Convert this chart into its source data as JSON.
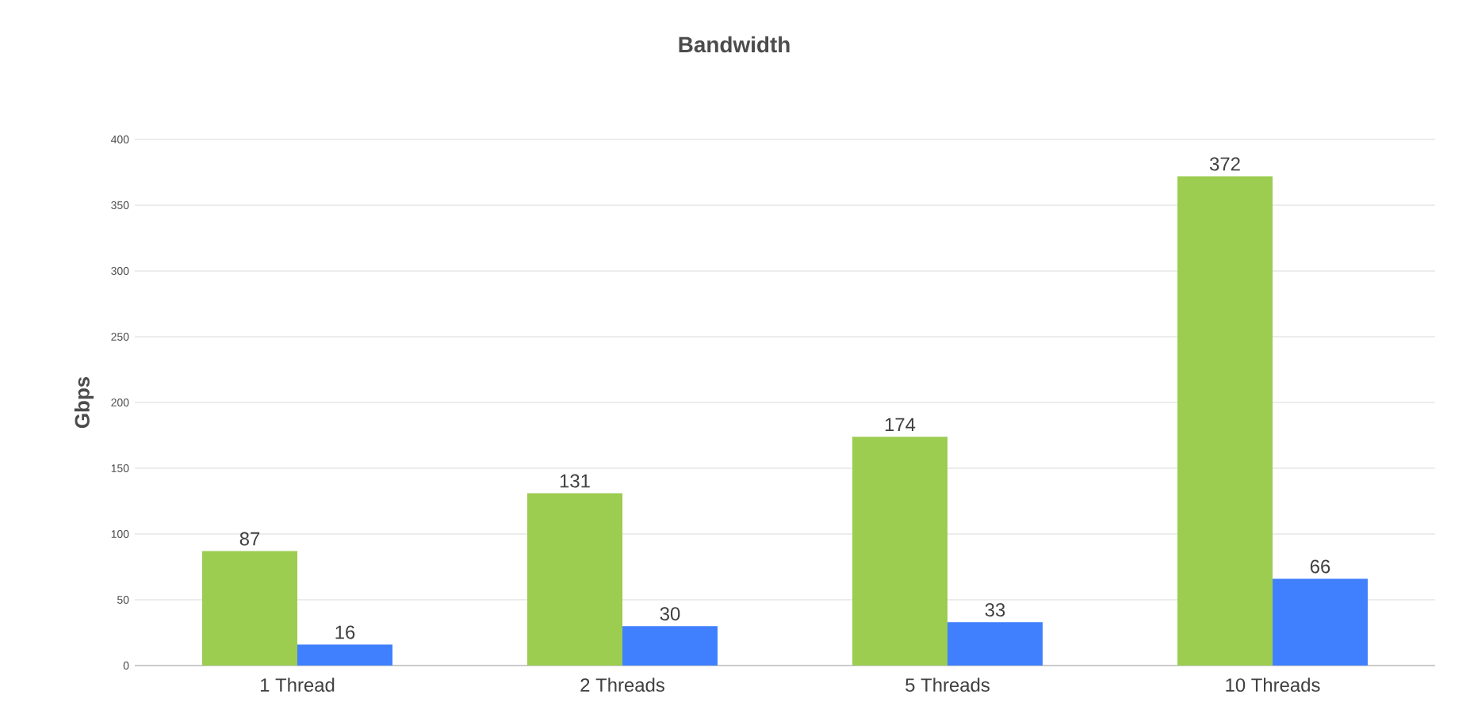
{
  "chart_data": {
    "type": "bar",
    "title": "Bandwidth",
    "ylabel": "Gbps",
    "categories": [
      "1 Thread",
      "2 Threads",
      "5 Threads",
      "10 Threads"
    ],
    "series": [
      {
        "color": "#9ccc50",
        "values": [
          87,
          131,
          174,
          372
        ]
      },
      {
        "color": "#4080ff",
        "values": [
          16,
          30,
          33,
          66
        ]
      }
    ],
    "ylim": [
      0,
      400
    ],
    "yticks": [
      0,
      50,
      100,
      150,
      200,
      250,
      300,
      350,
      400
    ],
    "grid": "y",
    "data_labels": true
  }
}
